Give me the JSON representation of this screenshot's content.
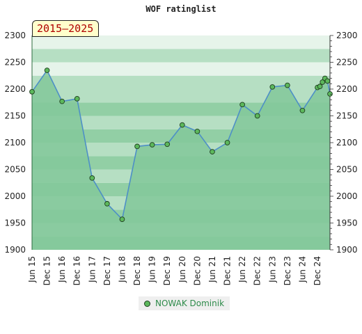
{
  "header": {
    "title": "WOF ratinglist",
    "period": "2015–2025"
  },
  "colors": {
    "band_dark": "#7cc492",
    "band_mid": "#92cfa5",
    "band_light": "#b6dfc3",
    "band_pale": "#e6f4ea",
    "area_fill": "#82c89a",
    "line": "#4d8fc7",
    "marker_fill": "#5cb85c",
    "marker_stroke": "#1e3d1e"
  },
  "chart_data": {
    "type": "area",
    "title": "WOF ratinglist",
    "ylim": [
      1900,
      2300
    ],
    "y_ticks": [
      1900,
      1950,
      2000,
      2050,
      2100,
      2150,
      2200,
      2250,
      2300
    ],
    "x_tick_labels": [
      "Jun 15",
      "Dec 15",
      "Jun 16",
      "Dec 16",
      "Jun 17",
      "Dec 17",
      "Jun 18",
      "Dec 18",
      "Jun 19",
      "Dec 19",
      "Jun 20",
      "Dec 20",
      "Jun 21",
      "Dec 21",
      "Jun 22",
      "Dec 22",
      "Jun 23",
      "Dec 23",
      "Jun 24",
      "Dec 24"
    ],
    "grid": true,
    "legend_position": "bottom",
    "series": [
      {
        "name": "NOWAK Dominik",
        "points": [
          {
            "x": "Jun 15",
            "y": 2195
          },
          {
            "x": "Dec 15",
            "y": 2235
          },
          {
            "x": "Jun 16",
            "y": 2177
          },
          {
            "x": "Dec 16",
            "y": 2182
          },
          {
            "x": "Jun 17",
            "y": 2034
          },
          {
            "x": "Dec 17",
            "y": 1986
          },
          {
            "x": "Jun 18",
            "y": 1957
          },
          {
            "x": "Dec 18",
            "y": 2093
          },
          {
            "x": "Jun 19",
            "y": 2096
          },
          {
            "x": "Dec 19",
            "y": 2097
          },
          {
            "x": "Jun 20",
            "y": 2133
          },
          {
            "x": "Dec 20",
            "y": 2121
          },
          {
            "x": "Jun 21",
            "y": 2083
          },
          {
            "x": "Dec 21",
            "y": 2100
          },
          {
            "x": "Jun 22",
            "y": 2171
          },
          {
            "x": "Dec 22",
            "y": 2150
          },
          {
            "x": "Jun 23",
            "y": 2204
          },
          {
            "x": "Dec 23",
            "y": 2207
          },
          {
            "x": "Jun 24",
            "y": 2160
          },
          {
            "x": "Dec 24",
            "y": 2203
          },
          {
            "x": "Jan 25",
            "y": 2205
          },
          {
            "x": "Feb 25",
            "y": 2213
          },
          {
            "x": "Mar 25",
            "y": 2220
          },
          {
            "x": "Apr 25",
            "y": 2215
          },
          {
            "x": "May 25",
            "y": 2191
          }
        ]
      }
    ]
  }
}
